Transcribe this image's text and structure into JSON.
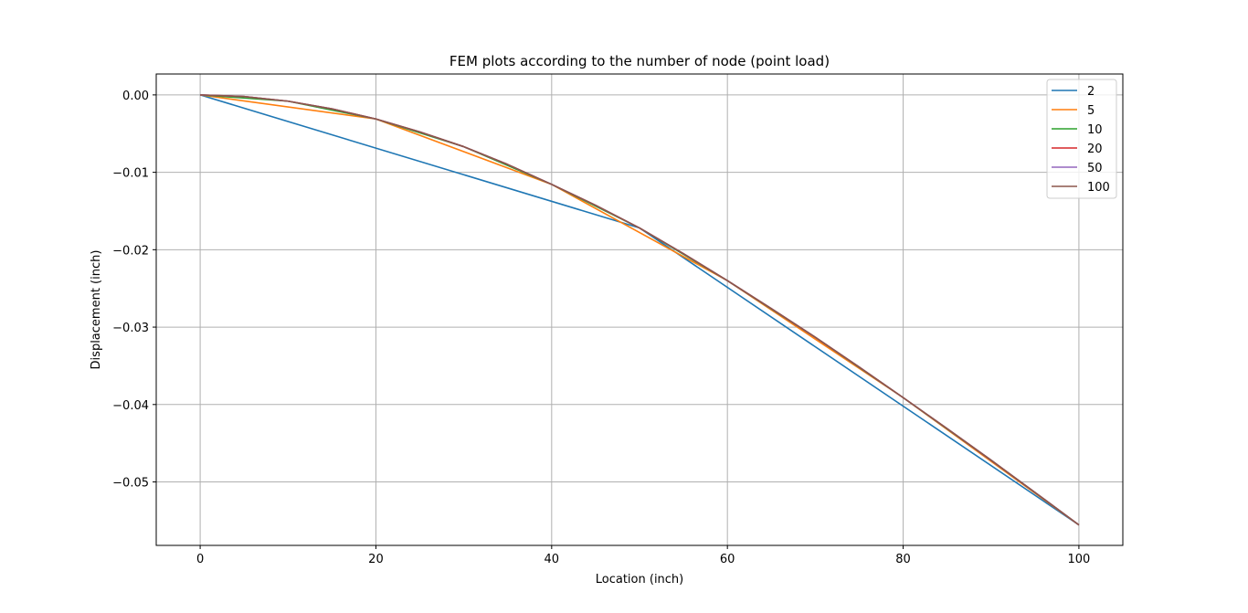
{
  "chart_data": {
    "type": "line",
    "title": "FEM plots according to the number of node (point load)",
    "xlabel": "Location (inch)",
    "ylabel": "Displacement (inch)",
    "xlim": [
      -5,
      105
    ],
    "ylim": [
      -0.0582,
      0.0027
    ],
    "xticks": [
      0,
      20,
      40,
      60,
      80,
      100
    ],
    "xtick_labels": [
      "0",
      "20",
      "40",
      "60",
      "80",
      "100"
    ],
    "yticks": [
      0.0,
      -0.01,
      -0.02,
      -0.03,
      -0.04,
      -0.05
    ],
    "ytick_labels": [
      "0.00",
      "−0.01",
      "−0.02",
      "−0.03",
      "−0.04",
      "−0.05"
    ],
    "grid": true,
    "legend_position": "top-right",
    "series": [
      {
        "name": "2",
        "color": "#1f77b4",
        "x": [
          0,
          50,
          100
        ],
        "y": [
          0.0,
          -0.01719,
          -0.05556
        ]
      },
      {
        "name": "5",
        "color": "#ff7f0e",
        "x": [
          0,
          20,
          40,
          60,
          80,
          100
        ],
        "y": [
          0.0,
          -0.00311,
          -0.01156,
          -0.024,
          -0.03911,
          -0.05556
        ]
      },
      {
        "name": "10",
        "color": "#2ca02c",
        "x": [
          0,
          10,
          20,
          30,
          40,
          50,
          60,
          70,
          80,
          90,
          100
        ],
        "y": [
          0.0,
          -0.00081,
          -0.00311,
          -0.00669,
          -0.01156,
          -0.01719,
          -0.024,
          -0.03131,
          -0.03911,
          -0.04719,
          -0.05556
        ]
      },
      {
        "name": "20",
        "color": "#d62728",
        "x": [
          0,
          5,
          10,
          15,
          20,
          25,
          30,
          35,
          40,
          45,
          50,
          55,
          60,
          65,
          70,
          75,
          80,
          85,
          90,
          95,
          100
        ],
        "y": [
          0.0,
          -0.00021,
          -0.00081,
          -0.00181,
          -0.00311,
          -0.00478,
          -0.00669,
          -0.00899,
          -0.01156,
          -0.01426,
          -0.01719,
          -0.02051,
          -0.024,
          -0.02761,
          -0.03131,
          -0.03516,
          -0.03911,
          -0.04311,
          -0.04719,
          -0.05135,
          -0.05556
        ]
      },
      {
        "name": "50",
        "color": "#9467bd",
        "x": [
          0,
          5,
          10,
          15,
          20,
          25,
          30,
          35,
          40,
          45,
          50,
          55,
          60,
          65,
          70,
          75,
          80,
          85,
          90,
          95,
          100
        ],
        "y": [
          0.0,
          -0.00021,
          -0.00081,
          -0.00181,
          -0.00311,
          -0.00478,
          -0.00669,
          -0.00899,
          -0.01156,
          -0.01426,
          -0.01719,
          -0.02051,
          -0.024,
          -0.02761,
          -0.03131,
          -0.03516,
          -0.03911,
          -0.04311,
          -0.04719,
          -0.05135,
          -0.05556
        ]
      },
      {
        "name": "100",
        "color": "#8c564b",
        "x": [
          0,
          5,
          10,
          15,
          20,
          25,
          30,
          35,
          40,
          45,
          50,
          55,
          60,
          65,
          70,
          75,
          80,
          85,
          90,
          95,
          100
        ],
        "y": [
          0.0,
          -0.00021,
          -0.00081,
          -0.00181,
          -0.00311,
          -0.00478,
          -0.00669,
          -0.00899,
          -0.01156,
          -0.01426,
          -0.01719,
          -0.02051,
          -0.024,
          -0.02761,
          -0.03131,
          -0.03516,
          -0.03911,
          -0.04311,
          -0.04719,
          -0.05135,
          -0.05556
        ]
      }
    ]
  }
}
